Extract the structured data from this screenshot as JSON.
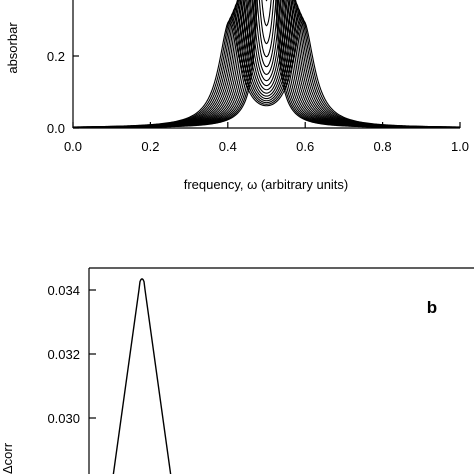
{
  "chart_data": [
    {
      "type": "line",
      "panel": "a (partially visible)",
      "xlabel": "frequency, ω (arbitrary units)",
      "ylabel_visible_fragment": "absorbar",
      "xlim": [
        0.0,
        1.0
      ],
      "x_ticks": [
        "0.0",
        "0.2",
        "0.4",
        "0.6",
        "0.8",
        "1.0"
      ],
      "y_ticks_visible": [
        "0.0",
        "0.2"
      ],
      "series_description": "family of ~20 absorption spectra, each a pair of symmetric peaks centred near ω = 0.5, splitting increasing from curve to curve",
      "series": {
        "center": 0.5,
        "count": 20,
        "half_splitting_min": 0.006,
        "half_splitting_step": 0.0047,
        "width_min": 0.012,
        "width_step": 0.0011,
        "amplitude_scale": 0.06
      }
    },
    {
      "type": "line",
      "panel": "b (partially visible)",
      "panel_label": "b",
      "ylabel_visible_fragment": "Δcorr",
      "y_ticks_visible": [
        "0.034",
        "0.032",
        "0.030"
      ],
      "ylim_visible": [
        0.0286,
        0.0346
      ],
      "peak_value": 0.03435,
      "description": "single sharp peak near the left of the panel"
    }
  ]
}
